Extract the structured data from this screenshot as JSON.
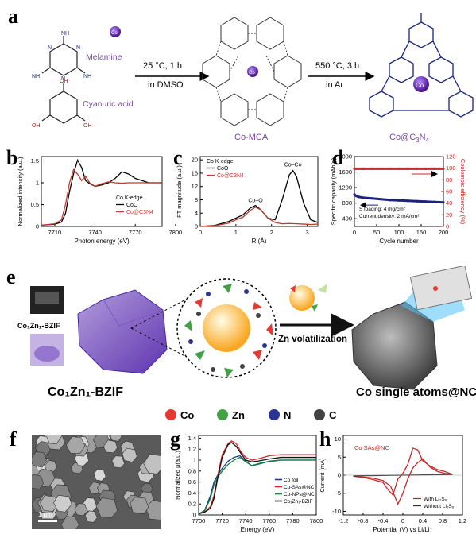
{
  "panel_labels": {
    "a": "a",
    "b": "b",
    "c": "c",
    "d": "d",
    "e": "e",
    "f": "f",
    "g": "g",
    "h": "h"
  },
  "panel_a": {
    "melamine": "Melamine",
    "cyanuric_acid": "Cyanuric acid",
    "co": "Co",
    "step1_line1": "25 °C, 1 h",
    "step1_line2": "in DMSO",
    "step2_line1": "550 °C, 3 h",
    "step2_line2": "in Ar",
    "intermediate": "Co-MCA",
    "product_prefix": "Co@C",
    "product_sub3": "3",
    "product_mid": "N",
    "product_sub4": "4",
    "atoms": {
      "N": "N",
      "H": "H",
      "O": "O",
      "NH2": "NH",
      "OH": "OH"
    }
  },
  "panel_e": {
    "bzif_small": "Co₁Zn₁-BZIF",
    "bzif_large": "Co₁Zn₁-BZIF",
    "arrow_text": "Zn volatilization",
    "product": "Co single atoms@NC",
    "legend": [
      {
        "label": "Co",
        "color": "#e53935"
      },
      {
        "label": "Zn",
        "color": "#43a047"
      },
      {
        "label": "N",
        "color": "#283593"
      },
      {
        "label": "C",
        "color": "#424242"
      }
    ]
  },
  "panel_f": {
    "scale_bar": "1 μm"
  },
  "chart_data": [
    {
      "id": "b",
      "type": "line",
      "xlabel": "Photon energy (eV)",
      "ylabel": "Normalized intensity (a.u.)",
      "xticks": [
        7710,
        7740,
        7770,
        7800
      ],
      "yticks": [
        0.0,
        0.5,
        1.0,
        1.5
      ],
      "xlim": [
        7700,
        7790
      ],
      "ylim": [
        0,
        1.6
      ],
      "legend_title": "Co K-edge",
      "series": [
        {
          "name": "CoO",
          "color": "#000000",
          "x": [
            7700,
            7710,
            7715,
            7718,
            7721,
            7724,
            7727,
            7730,
            7733,
            7736,
            7740,
            7745,
            7750,
            7755,
            7760,
            7765,
            7770,
            7775,
            7780,
            7785,
            7790
          ],
          "y": [
            0.03,
            0.05,
            0.1,
            0.3,
            0.8,
            1.2,
            1.52,
            1.35,
            1.05,
            0.98,
            0.92,
            0.95,
            1.0,
            1.1,
            1.25,
            1.2,
            1.1,
            1.05,
            1.0,
            1.0,
            1.0
          ]
        },
        {
          "name": "Co@C3N4",
          "color": "#c0392b",
          "x": [
            7700,
            7710,
            7715,
            7718,
            7721,
            7724,
            7727,
            7730,
            7733,
            7736,
            7740,
            7745,
            7750,
            7755,
            7760,
            7765,
            7770,
            7775,
            7780,
            7785,
            7790
          ],
          "y": [
            0.03,
            0.06,
            0.15,
            0.5,
            1.0,
            1.3,
            1.2,
            1.05,
            1.15,
            1.0,
            0.92,
            0.98,
            1.02,
            1.0,
            0.99,
            1.0,
            1.0,
            1.0,
            1.0,
            1.0,
            1.0
          ]
        }
      ]
    },
    {
      "id": "c",
      "type": "line",
      "xlabel": "R (Å)",
      "ylabel": "FT magnitude (a.u.)",
      "xticks": [
        0,
        1,
        2,
        3
      ],
      "yticks": [
        0,
        4,
        8,
        12,
        16,
        20
      ],
      "xlim": [
        0,
        3.3
      ],
      "ylim": [
        0,
        21
      ],
      "legend_title": "Co K-edge",
      "annotations": [
        "Co–Co",
        "Co–O"
      ],
      "series": [
        {
          "name": "CoO",
          "color": "#000000",
          "x": [
            0,
            0.4,
            0.8,
            1.0,
            1.2,
            1.4,
            1.55,
            1.7,
            1.9,
            2.1,
            2.3,
            2.5,
            2.6,
            2.7,
            2.9,
            3.1,
            3.3
          ],
          "y": [
            0,
            0.3,
            1.5,
            2.5,
            3.5,
            5.5,
            6.3,
            5.0,
            2.5,
            2.0,
            8.0,
            15.5,
            16.8,
            15.0,
            7.0,
            2.0,
            1.2
          ]
        },
        {
          "name": "Co@C3N4",
          "color": "#c0392b",
          "x": [
            0,
            0.4,
            0.8,
            1.0,
            1.2,
            1.4,
            1.55,
            1.7,
            1.9,
            2.1,
            2.3,
            2.5,
            2.7,
            2.9,
            3.1,
            3.3
          ],
          "y": [
            0,
            0.2,
            1.0,
            2.0,
            2.8,
            4.8,
            5.8,
            5.0,
            2.5,
            1.2,
            0.8,
            0.9,
            0.8,
            0.7,
            0.6,
            0.7
          ]
        }
      ]
    },
    {
      "id": "d",
      "type": "scatter",
      "xlabel": "Cycle number",
      "ylabel": "Specific capacity (mAh/g)",
      "y2label": "Coulombic efficiency (%)",
      "xticks": [
        0,
        50,
        100,
        150,
        200
      ],
      "yticks": [
        400,
        800,
        1200,
        1600,
        2000
      ],
      "y2ticks": [
        0,
        20,
        40,
        60,
        80,
        100,
        120
      ],
      "xlim": [
        0,
        200
      ],
      "ylim": [
        200,
        2000
      ],
      "y2lim": [
        0,
        120
      ],
      "notes": [
        "S loading: 4 mg/cm²",
        "Current density: 2 mA/cm²"
      ],
      "series": [
        {
          "name": "Capacity",
          "axis": "left",
          "color": "#1a237e",
          "x": [
            0,
            5,
            10,
            20,
            40,
            60,
            80,
            100,
            120,
            140,
            160,
            180,
            200
          ],
          "y": [
            1020,
            980,
            960,
            940,
            920,
            900,
            880,
            870,
            860,
            850,
            840,
            830,
            820
          ]
        },
        {
          "name": "Coulombic efficiency",
          "axis": "right",
          "color": "#c62828",
          "x": [
            0,
            20,
            40,
            60,
            80,
            100,
            120,
            140,
            160,
            180,
            200
          ],
          "y": [
            99,
            99,
            99,
            99,
            99,
            99,
            99,
            99,
            99,
            99,
            99
          ]
        }
      ]
    },
    {
      "id": "g",
      "type": "line",
      "xlabel": "Energy (eV)",
      "ylabel": "Normalized μ(a.u.)",
      "xticks": [
        7700,
        7720,
        7740,
        7760,
        7780,
        7800
      ],
      "yticks": [
        0.0,
        0.2,
        0.4,
        0.6,
        0.8,
        1.0,
        1.2,
        1.4
      ],
      "xlim": [
        7700,
        7800
      ],
      "ylim": [
        0,
        1.45
      ],
      "series": [
        {
          "name": "Co foil",
          "color": "#1e3a8a",
          "x": [
            7700,
            7705,
            7710,
            7713,
            7716,
            7720,
            7725,
            7730,
            7735,
            7740,
            7745,
            7750,
            7755,
            7760,
            7770,
            7780,
            7790,
            7800
          ],
          "y": [
            0.02,
            0.08,
            0.35,
            0.6,
            0.72,
            0.85,
            0.98,
            1.05,
            1.08,
            0.98,
            0.9,
            0.92,
            0.95,
            0.98,
            1.0,
            1.0,
            1.0,
            1.0
          ]
        },
        {
          "name": "Co-SAs@NC",
          "color": "#dc2626",
          "x": [
            7700,
            7705,
            7710,
            7713,
            7716,
            7720,
            7725,
            7728,
            7732,
            7736,
            7740,
            7745,
            7750,
            7755,
            7760,
            7770,
            7780,
            7790,
            7800
          ],
          "y": [
            0.02,
            0.05,
            0.15,
            0.35,
            0.7,
            1.1,
            1.3,
            1.35,
            1.3,
            1.15,
            1.05,
            1.0,
            1.02,
            1.05,
            1.08,
            1.1,
            1.1,
            1.1,
            1.1
          ]
        },
        {
          "name": "Co-NPs@NC",
          "color": "#15803d",
          "x": [
            7700,
            7705,
            7710,
            7713,
            7716,
            7720,
            7725,
            7730,
            7735,
            7740,
            7745,
            7750,
            7755,
            7760,
            7770,
            7780,
            7790,
            7800
          ],
          "y": [
            0.02,
            0.07,
            0.3,
            0.55,
            0.68,
            0.8,
            0.92,
            1.0,
            1.05,
            0.97,
            0.9,
            0.93,
            0.96,
            0.97,
            1.0,
            1.0,
            1.0,
            1.0
          ]
        },
        {
          "name": "Co₁Zn₁-BZIF",
          "color": "#111111",
          "x": [
            7700,
            7705,
            7710,
            7713,
            7716,
            7720,
            7725,
            7728,
            7732,
            7736,
            7740,
            7745,
            7750,
            7755,
            7760,
            7770,
            7780,
            7790,
            7800
          ],
          "y": [
            0.02,
            0.05,
            0.12,
            0.3,
            0.65,
            1.05,
            1.28,
            1.32,
            1.25,
            1.12,
            1.0,
            0.97,
            0.98,
            1.0,
            1.02,
            1.05,
            1.05,
            1.05,
            1.05
          ]
        }
      ]
    },
    {
      "id": "h",
      "type": "line",
      "xlabel": "Potential (V) vs Li/Li⁺",
      "ylabel": "Current (mA)",
      "xticks": [
        -1.2,
        -0.8,
        -0.4,
        0.0,
        0.4,
        0.8,
        1.2
      ],
      "yticks": [
        -10,
        -5,
        0,
        5,
        10
      ],
      "xlim": [
        -1.2,
        1.2
      ],
      "ylim": [
        -11,
        11
      ],
      "annotation": "Co SAs@NC",
      "series": [
        {
          "name": "With Li2S6",
          "color": "#c62828",
          "x": [
            -1.0,
            -0.8,
            -0.6,
            -0.4,
            -0.25,
            -0.1,
            0.0,
            0.1,
            0.2,
            0.3,
            0.4,
            0.55,
            0.7,
            0.85,
            1.0,
            0.85,
            0.7,
            0.55,
            0.4,
            0.3,
            0.2,
            0.1,
            0.0,
            -0.1,
            -0.2,
            -0.3,
            -0.4,
            -0.6,
            -0.8,
            -1.0
          ],
          "y": [
            -0.3,
            -0.5,
            -0.8,
            -1.5,
            -3.0,
            -8.0,
            -5.0,
            -1.0,
            2.0,
            3.5,
            4.5,
            2.2,
            1.0,
            0.5,
            0.2,
            1.0,
            1.5,
            2.5,
            4.0,
            7.0,
            7.5,
            3.0,
            0.5,
            -1.0,
            -5.5,
            -4.0,
            -2.0,
            -1.2,
            -0.6,
            -0.3
          ]
        },
        {
          "name": "Without Li2S6",
          "color": "#333333",
          "x": [
            -1.0,
            0.0,
            1.0
          ],
          "y": [
            -0.2,
            0.0,
            0.2
          ]
        }
      ],
      "legend": [
        "With Li₂S₆",
        "Without Li₂S₆"
      ]
    }
  ]
}
